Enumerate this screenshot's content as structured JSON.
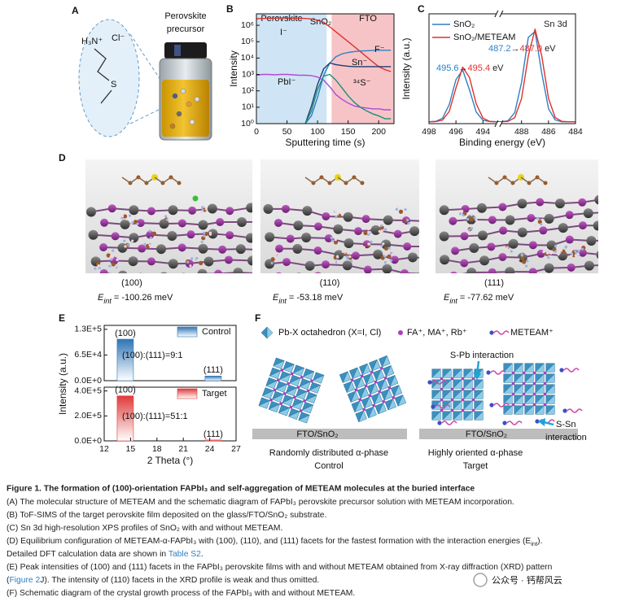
{
  "panel_labels": [
    "A",
    "B",
    "C",
    "D",
    "E",
    "F"
  ],
  "panel_a": {
    "cation": "H₃N⁺",
    "anion": "Cl⁻",
    "sulfur": "S",
    "vial_label": [
      "Perovskite",
      "precursor"
    ]
  },
  "chart_data": [
    {
      "type": "line",
      "ylabel": "Intensity",
      "xlabel": "Sputtering time (s)",
      "log_y": true,
      "xlim": [
        0,
        225
      ],
      "xticks": [
        0,
        50,
        100,
        150,
        200
      ],
      "ylim": [
        1,
        5000000
      ],
      "yticks": [
        {
          "value": 1,
          "label": "10⁰"
        },
        {
          "value": 10,
          "label": "10¹"
        },
        {
          "value": 100,
          "label": "10²"
        },
        {
          "value": 1000,
          "label": "10³"
        },
        {
          "value": 10000,
          "label": "10⁴"
        },
        {
          "value": 100000,
          "label": "10⁵"
        },
        {
          "value": 1000000,
          "label": "10⁶"
        }
      ],
      "regions": [
        {
          "name": "Perovskite",
          "from": 0,
          "to": 115,
          "color": "#cfe5f5",
          "text_color": "#2f7fc1"
        },
        {
          "name": "SnO₂",
          "from": 115,
          "to": 123,
          "color": "#ffffff",
          "text_color": "#222222"
        },
        {
          "name": "FTO",
          "from": 123,
          "to": 225,
          "color": "#f6c4c7",
          "text_color": "#e0302f"
        }
      ],
      "x": [
        0,
        10,
        20,
        30,
        40,
        50,
        60,
        70,
        80,
        90,
        100,
        110,
        120,
        130,
        140,
        150,
        160,
        170,
        180,
        190,
        200,
        210,
        220
      ],
      "series": [
        {
          "name": "I⁻",
          "color": "#e0302f",
          "values": [
            2500000,
            2600000,
            2700000,
            2700000,
            2800000,
            2800000,
            2700000,
            2700000,
            2600000,
            2400000,
            2000000,
            1500000,
            800000,
            400000,
            200000,
            100000,
            50000,
            25000,
            12000,
            6000,
            3000,
            2000,
            1500
          ]
        },
        {
          "name": "F⁻",
          "color": "#2f7fc1",
          "values": [
            null,
            null,
            null,
            null,
            null,
            null,
            null,
            null,
            1,
            3,
            40,
            900,
            5000,
            12000,
            18000,
            22000,
            25000,
            27000,
            28000,
            29000,
            30000,
            30000,
            30000
          ]
        },
        {
          "name": "Sn⁻",
          "color": "#1f3b6e",
          "values": [
            null,
            null,
            null,
            null,
            null,
            null,
            null,
            null,
            1,
            12,
            250,
            2200,
            5000,
            4000,
            3500,
            3200,
            3000,
            3000,
            3000,
            3000,
            3000,
            3000,
            3000
          ]
        },
        {
          "name": "PbI⁻",
          "color": "#b04ad8",
          "values": [
            900,
            1000,
            1000,
            950,
            1000,
            1000,
            950,
            900,
            900,
            850,
            700,
            450,
            180,
            60,
            30,
            18,
            12,
            10,
            9,
            8,
            8,
            7,
            7
          ]
        },
        {
          "name": "³⁴S⁻",
          "color": "#1a8c7a",
          "values": [
            null,
            null,
            null,
            null,
            null,
            null,
            null,
            null,
            1,
            6,
            120,
            800,
            1000,
            450,
            150,
            50,
            20,
            10,
            6,
            4,
            3,
            2,
            2
          ]
        }
      ]
    },
    {
      "type": "line",
      "ylabel": "Intensity (a.u.)",
      "xlabel": "Binding energy (eV)",
      "xlim": [
        498,
        484
      ],
      "xbreak": [
        493,
        489.5
      ],
      "xticks": [
        498,
        496,
        494,
        488,
        486,
        484
      ],
      "ylim": [
        0,
        1.15
      ],
      "x": [
        498,
        497.5,
        497,
        496.5,
        496,
        495.5,
        495,
        494.5,
        494,
        493.5,
        493,
        492.5,
        492,
        491.5,
        491,
        490.5,
        490,
        489.5,
        489,
        488.5,
        488,
        487.5,
        487,
        486.5,
        486,
        485.5,
        485,
        484.5,
        484
      ],
      "series": [
        {
          "name": "SnO₂",
          "color": "#2f7fc1",
          "values": [
            0.02,
            0.024,
            0.056,
            0.199,
            0.46,
            0.562,
            0.354,
            0.122,
            0.036,
            0.022,
            0.02,
            0.02,
            0.02,
            0.02,
            0.02,
            0.02,
            0.02,
            0.02,
            0.031,
            0.116,
            0.431,
            0.903,
            0.966,
            0.526,
            0.155,
            0.038,
            0.02,
            0.02,
            0.02
          ]
        },
        {
          "name": "SnO₂/METEAM",
          "color": "#e0302f",
          "values": [
            0.02,
            0.021,
            0.037,
            0.128,
            0.372,
            0.592,
            0.485,
            0.209,
            0.058,
            0.024,
            0.02,
            0.02,
            0.02,
            0.02,
            0.02,
            0.02,
            0.02,
            0.02,
            0.024,
            0.063,
            0.262,
            0.706,
            0.99,
            0.706,
            0.262,
            0.063,
            0.024,
            0.02,
            0.02
          ]
        }
      ],
      "annotations": [
        {
          "text": "495.6",
          "color": "#2f7fc1"
        },
        {
          "text": "→",
          "color": "#222222"
        },
        {
          "text": "495.4",
          "color": "#e0302f"
        },
        {
          "text": "eV",
          "color": "#222222"
        },
        {
          "text": "487.2",
          "color": "#2f7fc1"
        },
        {
          "text": "→",
          "color": "#222222"
        },
        {
          "text": "487.0",
          "color": "#e0302f"
        },
        {
          "text": "eV",
          "color": "#222222"
        },
        {
          "text": "Sn 3d",
          "color": "#222222"
        }
      ]
    },
    {
      "type": "bar",
      "ylabel": "Intensity (a.u.)",
      "xlim": [
        12,
        27
      ],
      "ylim": [
        0,
        140000
      ],
      "yticks": [
        {
          "value": 0,
          "label": "0.0E+0"
        },
        {
          "value": 65000,
          "label": "6.5E+4"
        },
        {
          "value": 130000,
          "label": "1.3E+5"
        }
      ],
      "legend": "Control",
      "color": "#2e75b6",
      "categories": [
        "(100)",
        "(111)"
      ],
      "x": [
        14.4,
        24.4
      ],
      "values": [
        105000,
        11700
      ],
      "annotation": "(100):(111)=9:1"
    },
    {
      "type": "bar",
      "xlabel": "2 Theta (°)",
      "xlim": [
        12,
        27
      ],
      "xticks": [
        12,
        15,
        18,
        21,
        24,
        27
      ],
      "ylim": [
        0,
        430000
      ],
      "yticks": [
        {
          "value": 0,
          "label": "0.0E+0"
        },
        {
          "value": 200000,
          "label": "2.0E+5"
        },
        {
          "value": 400000,
          "label": "4.0E+5"
        }
      ],
      "legend": "Target",
      "color": "#e03a3a",
      "categories": [
        "(100)",
        "(111)"
      ],
      "x": [
        14.4,
        24.4
      ],
      "values": [
        360000,
        7060
      ],
      "annotation": "(100):(111)=51:1"
    }
  ],
  "panel_d": {
    "facets": [
      {
        "facet": "(100)",
        "symbol": "E",
        "subscript": "int",
        "energy": "= -100.26 meV"
      },
      {
        "facet": "(110)",
        "symbol": "E",
        "subscript": "int",
        "energy": "= -53.18 meV"
      },
      {
        "facet": "(111)",
        "symbol": "E",
        "subscript": "int",
        "energy": "= -77.62 meV"
      }
    ]
  },
  "panel_f": {
    "legend": [
      "Pb-X octahedron (X=I, Cl)",
      "FA⁺, MA⁺, Rb⁺",
      "METEAM⁺"
    ],
    "substrate": "FTO/SnO₂",
    "control": {
      "title": "Randomly distributed α-phase",
      "label": "Control"
    },
    "target": {
      "title": "Highly oriented α-phase",
      "label": "Target"
    },
    "s_pb": "S-Pb interaction",
    "s_sn": [
      "S-Sn",
      "interaction"
    ]
  },
  "caption": {
    "title": "Figure 1.  The formation of (100)-orientation FAPbI₃ and self-aggregation of METEAM molecules at the buried interface",
    "lines": [
      [
        "(A) The molecular structure of METEAM and the schematic diagram of FAPbI₃ perovskite precursor solution with METEAM incorporation."
      ],
      [
        "(B) ToF-SIMS of the target perovskite film deposited on the glass/FTO/SnO₂ substrate."
      ],
      [
        "(C) Sn 3d high-resolution XPS profiles of SnO₂ with and without METEAM."
      ],
      [
        "(D) Equilibrium configuration of METEAM-α-FAPbI₃ with (100), (110), and (111) facets for the fastest formation with the interaction energies (E",
        {
          "sub": "int"
        },
        ")."
      ],
      [
        "Detailed DFT calculation data are shown in ",
        {
          "link": "Table S2"
        },
        "."
      ],
      [
        "(E) Peak intensities of (100) and (111) facets in the FAPbI₃ perovskite films with and without METEAM obtained from X-ray diffraction (XRD) pattern"
      ],
      [
        "(",
        {
          "link": "Figure 2"
        },
        "J). The intensity of (110) facets in the XRD profile is weak and thus omitted."
      ],
      [
        "(F) Schematic diagram of the crystal growth process of the FAPbI₃ with and without METEAM."
      ]
    ]
  },
  "watermark": "公众号 · 钙帮风云"
}
